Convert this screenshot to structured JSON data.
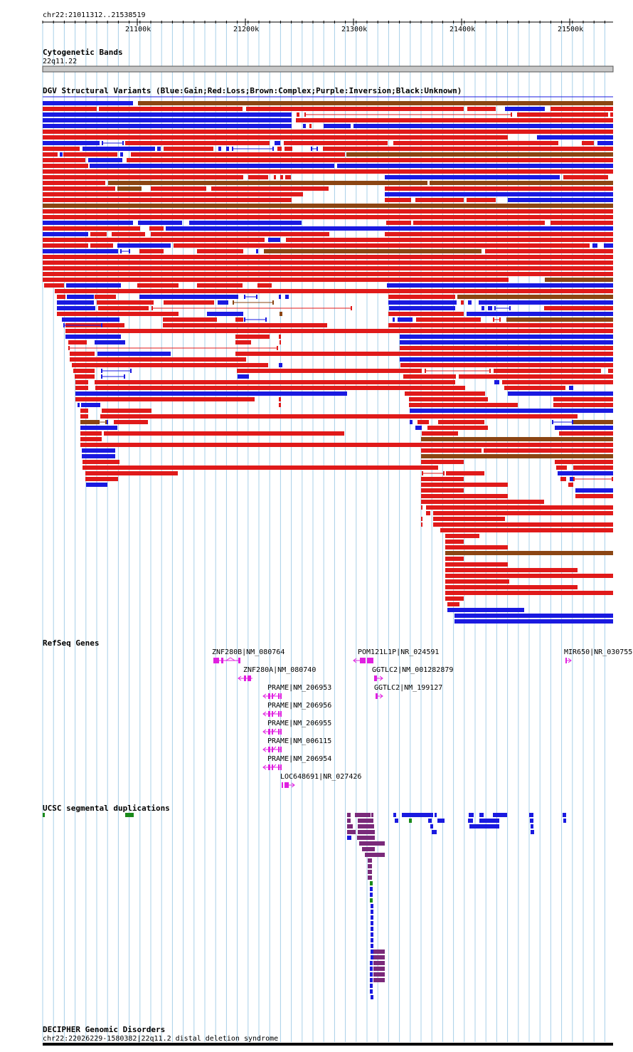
{
  "colors": {
    "gain": "#1a1ae0",
    "loss": "#e01a1a",
    "complex": "#8b4513",
    "gene": "#e020e0",
    "segdup_purple": "#7a2a7a",
    "segdup_blue": "#1a1ae0",
    "segdup_green": "#1a8a1a",
    "grid": "#a8d0e8"
  },
  "ruler": {
    "location": "chr22:21011312..21538519",
    "ticks": [
      "21100k",
      "21200k",
      "21300k",
      "21400k",
      "21500k"
    ]
  },
  "cytoband": {
    "title": "Cytogenetic Bands",
    "band": "22q11.22"
  },
  "dgv": {
    "title": "DGV Structural Variants (Blue:Gain;Red:Loss;Brown:Complex;Purple:Inversion;Black:Unknown)"
  },
  "refseq": {
    "title": "RefSeq Genes",
    "genes": [
      "ZNF280B|NM_080764",
      "POM121L1P|NR_024591",
      "MIR650|NR_030755",
      "ZNF280A|NM_080740",
      "GGTLC2|NM_001282879",
      "PRAME|NM_206953",
      "GGTLC2|NM_199127",
      "PRAME|NM_206956",
      "PRAME|NM_206955",
      "PRAME|NM_006115",
      "PRAME|NM_206954",
      "LOC648691|NR_027426"
    ]
  },
  "segdup": {
    "title": "UCSC segmental duplications"
  },
  "decipher": {
    "title": "DECIPHER Genomic Disorders",
    "feature": "chr22:22026229-1580382|22q11.2 distal deletion syndrome"
  }
}
